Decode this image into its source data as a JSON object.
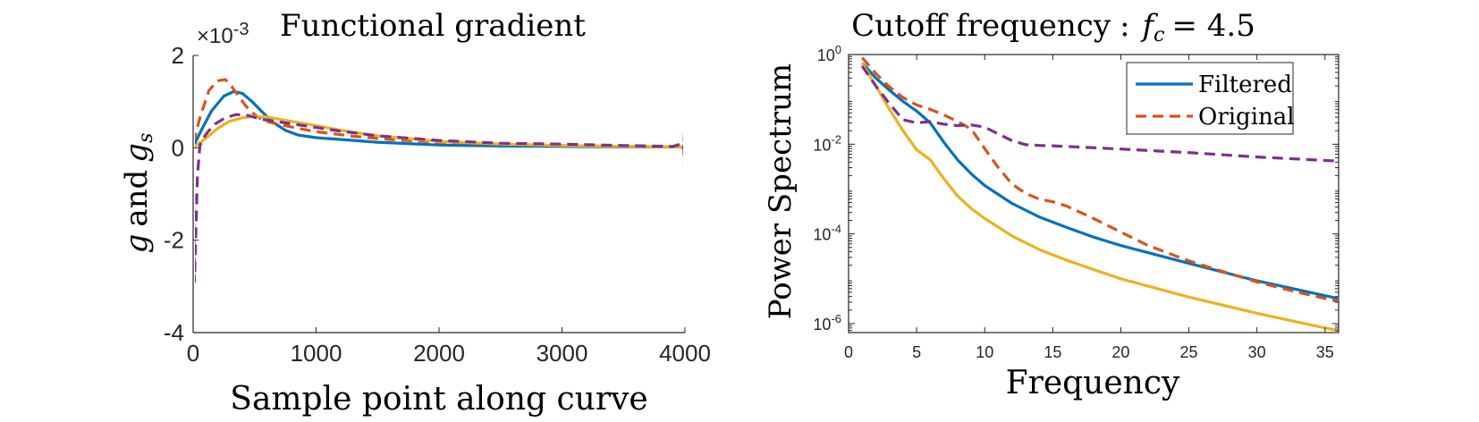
{
  "chart_data": [
    {
      "type": "line",
      "title": "Functional gradient",
      "xlabel": "Sample point along curve",
      "ylabel": "g and g_s",
      "ylabel_parts": {
        "a": "g",
        "and": "and",
        "b": "g",
        "sub": "s"
      },
      "exponent_label": {
        "prefix": "×10",
        "power": "-3"
      },
      "xlim": [
        0,
        4000
      ],
      "ylim": [
        -4,
        2
      ],
      "y_scale_factor": 0.001,
      "xticks": [
        0,
        1000,
        2000,
        3000,
        4000
      ],
      "xtick_labels": [
        "0",
        "1000",
        "2000",
        "3000",
        "4000"
      ],
      "yticks": [
        -4,
        -2,
        0,
        2
      ],
      "ytick_labels": [
        "-4",
        "-2",
        "0",
        "2"
      ],
      "grid": false,
      "series": [
        {
          "color": "#0072BD",
          "style": "solid",
          "x": [
            0,
            60,
            150,
            250,
            330,
            400,
            480,
            560,
            650,
            750,
            850,
            1000,
            1200,
            1500,
            2000,
            2500,
            3000,
            3500,
            3950,
            4000
          ],
          "y": [
            0.02,
            0.35,
            0.8,
            1.12,
            1.22,
            1.18,
            1.0,
            0.78,
            0.55,
            0.38,
            0.28,
            0.22,
            0.18,
            0.12,
            0.06,
            0.04,
            0.03,
            0.02,
            0.02,
            0.02
          ]
        },
        {
          "color": "#D95319",
          "style": "dashed",
          "x": [
            0,
            60,
            130,
            200,
            260,
            300,
            360,
            430,
            500,
            580,
            680,
            800,
            1000,
            1300,
            1600,
            2000,
            2500,
            3000,
            3500,
            3950,
            3990,
            4000,
            4003
          ],
          "y": [
            0.1,
            0.7,
            1.25,
            1.45,
            1.48,
            1.38,
            1.15,
            0.9,
            0.72,
            0.58,
            0.52,
            0.45,
            0.35,
            0.25,
            0.18,
            0.12,
            0.08,
            0.05,
            0.03,
            0.02,
            0.0,
            0.5,
            -0.3
          ]
        },
        {
          "color": "#EDB120",
          "style": "solid",
          "x": [
            0,
            100,
            200,
            300,
            400,
            500,
            600,
            700,
            850,
            1000,
            1200,
            1500,
            2000,
            2500,
            3000,
            3500,
            4000
          ],
          "y": [
            0.0,
            0.2,
            0.42,
            0.58,
            0.65,
            0.68,
            0.67,
            0.62,
            0.55,
            0.48,
            0.38,
            0.26,
            0.14,
            0.08,
            0.05,
            0.03,
            0.02
          ]
        },
        {
          "color": "#7E2F8E",
          "style": "dashed",
          "x": [
            0,
            10,
            20,
            35,
            55,
            80,
            120,
            180,
            260,
            350,
            450,
            550,
            700,
            850,
            1000,
            1200,
            1500,
            2000,
            2500,
            3000,
            3500,
            3900,
            3990,
            4003
          ],
          "y": [
            0.2,
            -2.9,
            -2.0,
            -0.6,
            0.05,
            0.2,
            0.35,
            0.52,
            0.65,
            0.72,
            0.7,
            0.62,
            0.56,
            0.5,
            0.44,
            0.36,
            0.26,
            0.16,
            0.1,
            0.08,
            0.05,
            0.03,
            0.1,
            -0.8
          ]
        }
      ]
    },
    {
      "type": "line",
      "title": "Cutoff frequency",
      "title_math": {
        "sep": ":",
        "sym": "f",
        "sub": "c",
        "eq": "= 4.5"
      },
      "xlabel": "Frequency",
      "ylabel": "Power Spectrum",
      "y_scale": "log",
      "xlim": [
        0,
        36
      ],
      "ylim": [
        6.3e-07,
        1.0
      ],
      "xticks": [
        0,
        5,
        10,
        15,
        20,
        25,
        30,
        35
      ],
      "xtick_labels": [
        "0",
        "5",
        "10",
        "15",
        "20",
        "25",
        "30",
        "35"
      ],
      "yticks": [
        1e-06,
        0.0001,
        0.01,
        1
      ],
      "ytick_labels": [
        [
          "10",
          "-6"
        ],
        [
          "10",
          "-4"
        ],
        [
          "10",
          "-2"
        ],
        [
          "10",
          "0"
        ]
      ],
      "grid": false,
      "legend": {
        "location": "top-right",
        "entries": [
          {
            "label": "Filtered",
            "color": "#0072BD",
            "style": "solid"
          },
          {
            "label": "Original",
            "color": "#D95319",
            "style": "dashed"
          }
        ]
      },
      "series": [
        {
          "name": "Filtered",
          "color": "#0072BD",
          "style": "solid",
          "x": [
            1,
            2,
            3,
            4,
            5,
            6,
            7,
            8,
            9,
            10,
            12,
            14,
            16,
            18,
            20,
            25,
            30,
            35,
            36
          ],
          "y": [
            0.65,
            0.3,
            0.16,
            0.09,
            0.055,
            0.03,
            0.011,
            0.0045,
            0.0022,
            0.0012,
            0.00048,
            0.00024,
            0.00014,
            8.5e-05,
            5.5e-05,
            2.2e-05,
            9e-06,
            4.2e-06,
            3.6e-06
          ]
        },
        {
          "name": "Original",
          "color": "#D95319",
          "style": "dashed",
          "x": [
            1,
            2,
            3,
            4,
            5,
            6,
            7,
            8,
            9,
            10,
            11,
            12,
            13,
            14,
            15,
            16,
            18,
            20,
            22,
            25,
            28,
            30,
            33,
            36
          ],
          "y": [
            0.85,
            0.38,
            0.19,
            0.11,
            0.075,
            0.06,
            0.045,
            0.032,
            0.022,
            0.008,
            0.003,
            0.0013,
            0.0008,
            0.0006,
            0.00052,
            0.00042,
            0.00022,
            0.00011,
            5.5e-05,
            2.5e-05,
            1.3e-05,
            8.5e-06,
            5e-06,
            3.1e-06
          ]
        },
        {
          "color": "#EDB120",
          "style": "solid",
          "x": [
            1,
            2,
            3,
            4,
            5,
            6,
            7,
            8,
            9,
            10,
            12,
            14,
            16,
            18,
            20,
            25,
            30,
            35,
            36
          ],
          "y": [
            0.65,
            0.2,
            0.06,
            0.02,
            0.0075,
            0.0045,
            0.0017,
            0.0007,
            0.00037,
            0.00022,
            9e-05,
            4.5e-05,
            2.6e-05,
            1.6e-05,
            1e-05,
            3.9e-06,
            1.7e-06,
            8e-07,
            7e-07
          ]
        },
        {
          "color": "#7E2F8E",
          "style": "dashed",
          "x": [
            1,
            2,
            3,
            4,
            5,
            6,
            7,
            8,
            9,
            10,
            11,
            12,
            13,
            14,
            15,
            20,
            25,
            30,
            36
          ],
          "y": [
            0.55,
            0.2,
            0.08,
            0.035,
            0.03,
            0.032,
            0.028,
            0.026,
            0.027,
            0.024,
            0.017,
            0.012,
            0.0098,
            0.0094,
            0.0092,
            0.0078,
            0.0065,
            0.0052,
            0.0042
          ]
        }
      ]
    }
  ]
}
